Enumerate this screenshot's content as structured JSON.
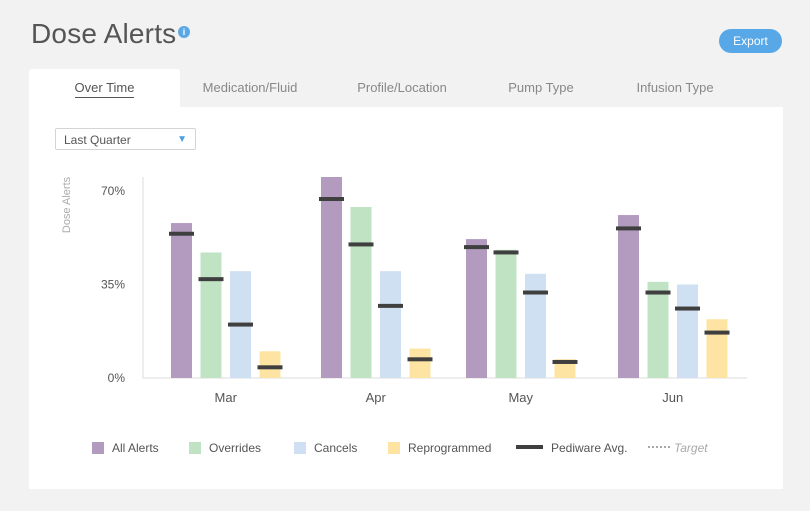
{
  "header": {
    "title": "Dose Alerts",
    "info": "i",
    "export_label": "Export"
  },
  "tabs": [
    {
      "label": "Over Time",
      "active": true
    },
    {
      "label": "Medication/Fluid",
      "active": false
    },
    {
      "label": "Profile/Location",
      "active": false
    },
    {
      "label": "Pump Type",
      "active": false
    },
    {
      "label": "Infusion Type",
      "active": false
    }
  ],
  "filter": {
    "selected": "Last Quarter"
  },
  "colors": {
    "all_alerts": "#b39bc0",
    "overrides": "#bfe3c3",
    "cancels": "#cfe0f3",
    "reprogrammed": "#fde4a2",
    "pediware_avg": "#3f3f3f"
  },
  "chart_data": {
    "type": "bar",
    "ylabel": "Dose Alerts",
    "ylim": [
      0,
      70
    ],
    "yticks": [
      "70%",
      "35%",
      "0%"
    ],
    "ytick_values": [
      70,
      35,
      0
    ],
    "categories": [
      "Mar",
      "Apr",
      "May",
      "Jun"
    ],
    "series": [
      {
        "name": "All Alerts",
        "color": "#b39bc0",
        "values": [
          58,
          78,
          52,
          61
        ]
      },
      {
        "name": "Overrides",
        "color": "#bfe3c3",
        "values": [
          47,
          64,
          48,
          36
        ]
      },
      {
        "name": "Cancels",
        "color": "#cfe0f3",
        "values": [
          40,
          40,
          39,
          35
        ]
      },
      {
        "name": "Reprogrammed",
        "color": "#fde4a2",
        "values": [
          10,
          11,
          7,
          22
        ]
      }
    ],
    "pediware_avg": [
      [
        54,
        37,
        20,
        4
      ],
      [
        67,
        50,
        27,
        7
      ],
      [
        49,
        47,
        32,
        6
      ],
      [
        56,
        32,
        26,
        17
      ]
    ],
    "legend": {
      "all_alerts": "All Alerts",
      "overrides": "Overrides",
      "cancels": "Cancels",
      "reprogrammed": "Reprogrammed",
      "pediware_avg": "Pediware Avg.",
      "target": "Target"
    },
    "grid": false
  }
}
